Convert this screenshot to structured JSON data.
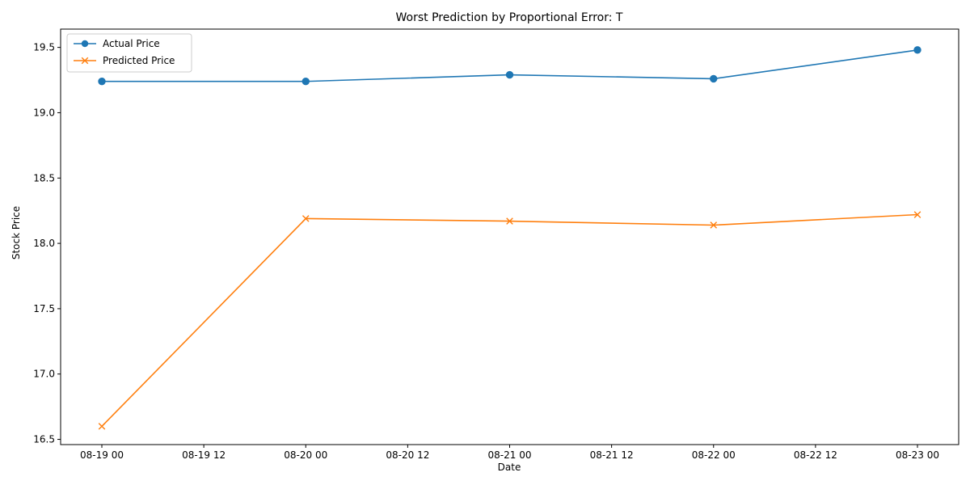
{
  "chart_data": {
    "type": "line",
    "title": "Worst Prediction by Proportional Error: T",
    "xlabel": "Date",
    "ylabel": "Stock Price",
    "x": [
      "08-19 00",
      "08-20 00",
      "08-21 00",
      "08-22 00",
      "08-23 00"
    ],
    "x_ticks": [
      "08-19 00",
      "08-19 12",
      "08-20 00",
      "08-20 12",
      "08-21 00",
      "08-21 12",
      "08-22 00",
      "08-22 12",
      "08-23 00"
    ],
    "y_ticks": [
      "16.5",
      "17.0",
      "17.5",
      "18.0",
      "18.5",
      "19.0",
      "19.5"
    ],
    "ylim": [
      16.46,
      19.64
    ],
    "grid": false,
    "legend_position": "upper-left",
    "series": [
      {
        "name": "Actual Price",
        "color": "#1f77b4",
        "marker": "circle",
        "values": [
          19.24,
          19.24,
          19.29,
          19.26,
          19.48
        ]
      },
      {
        "name": "Predicted Price",
        "color": "#ff7f0e",
        "marker": "x",
        "values": [
          16.6,
          18.19,
          18.17,
          18.14,
          18.22
        ]
      }
    ]
  }
}
